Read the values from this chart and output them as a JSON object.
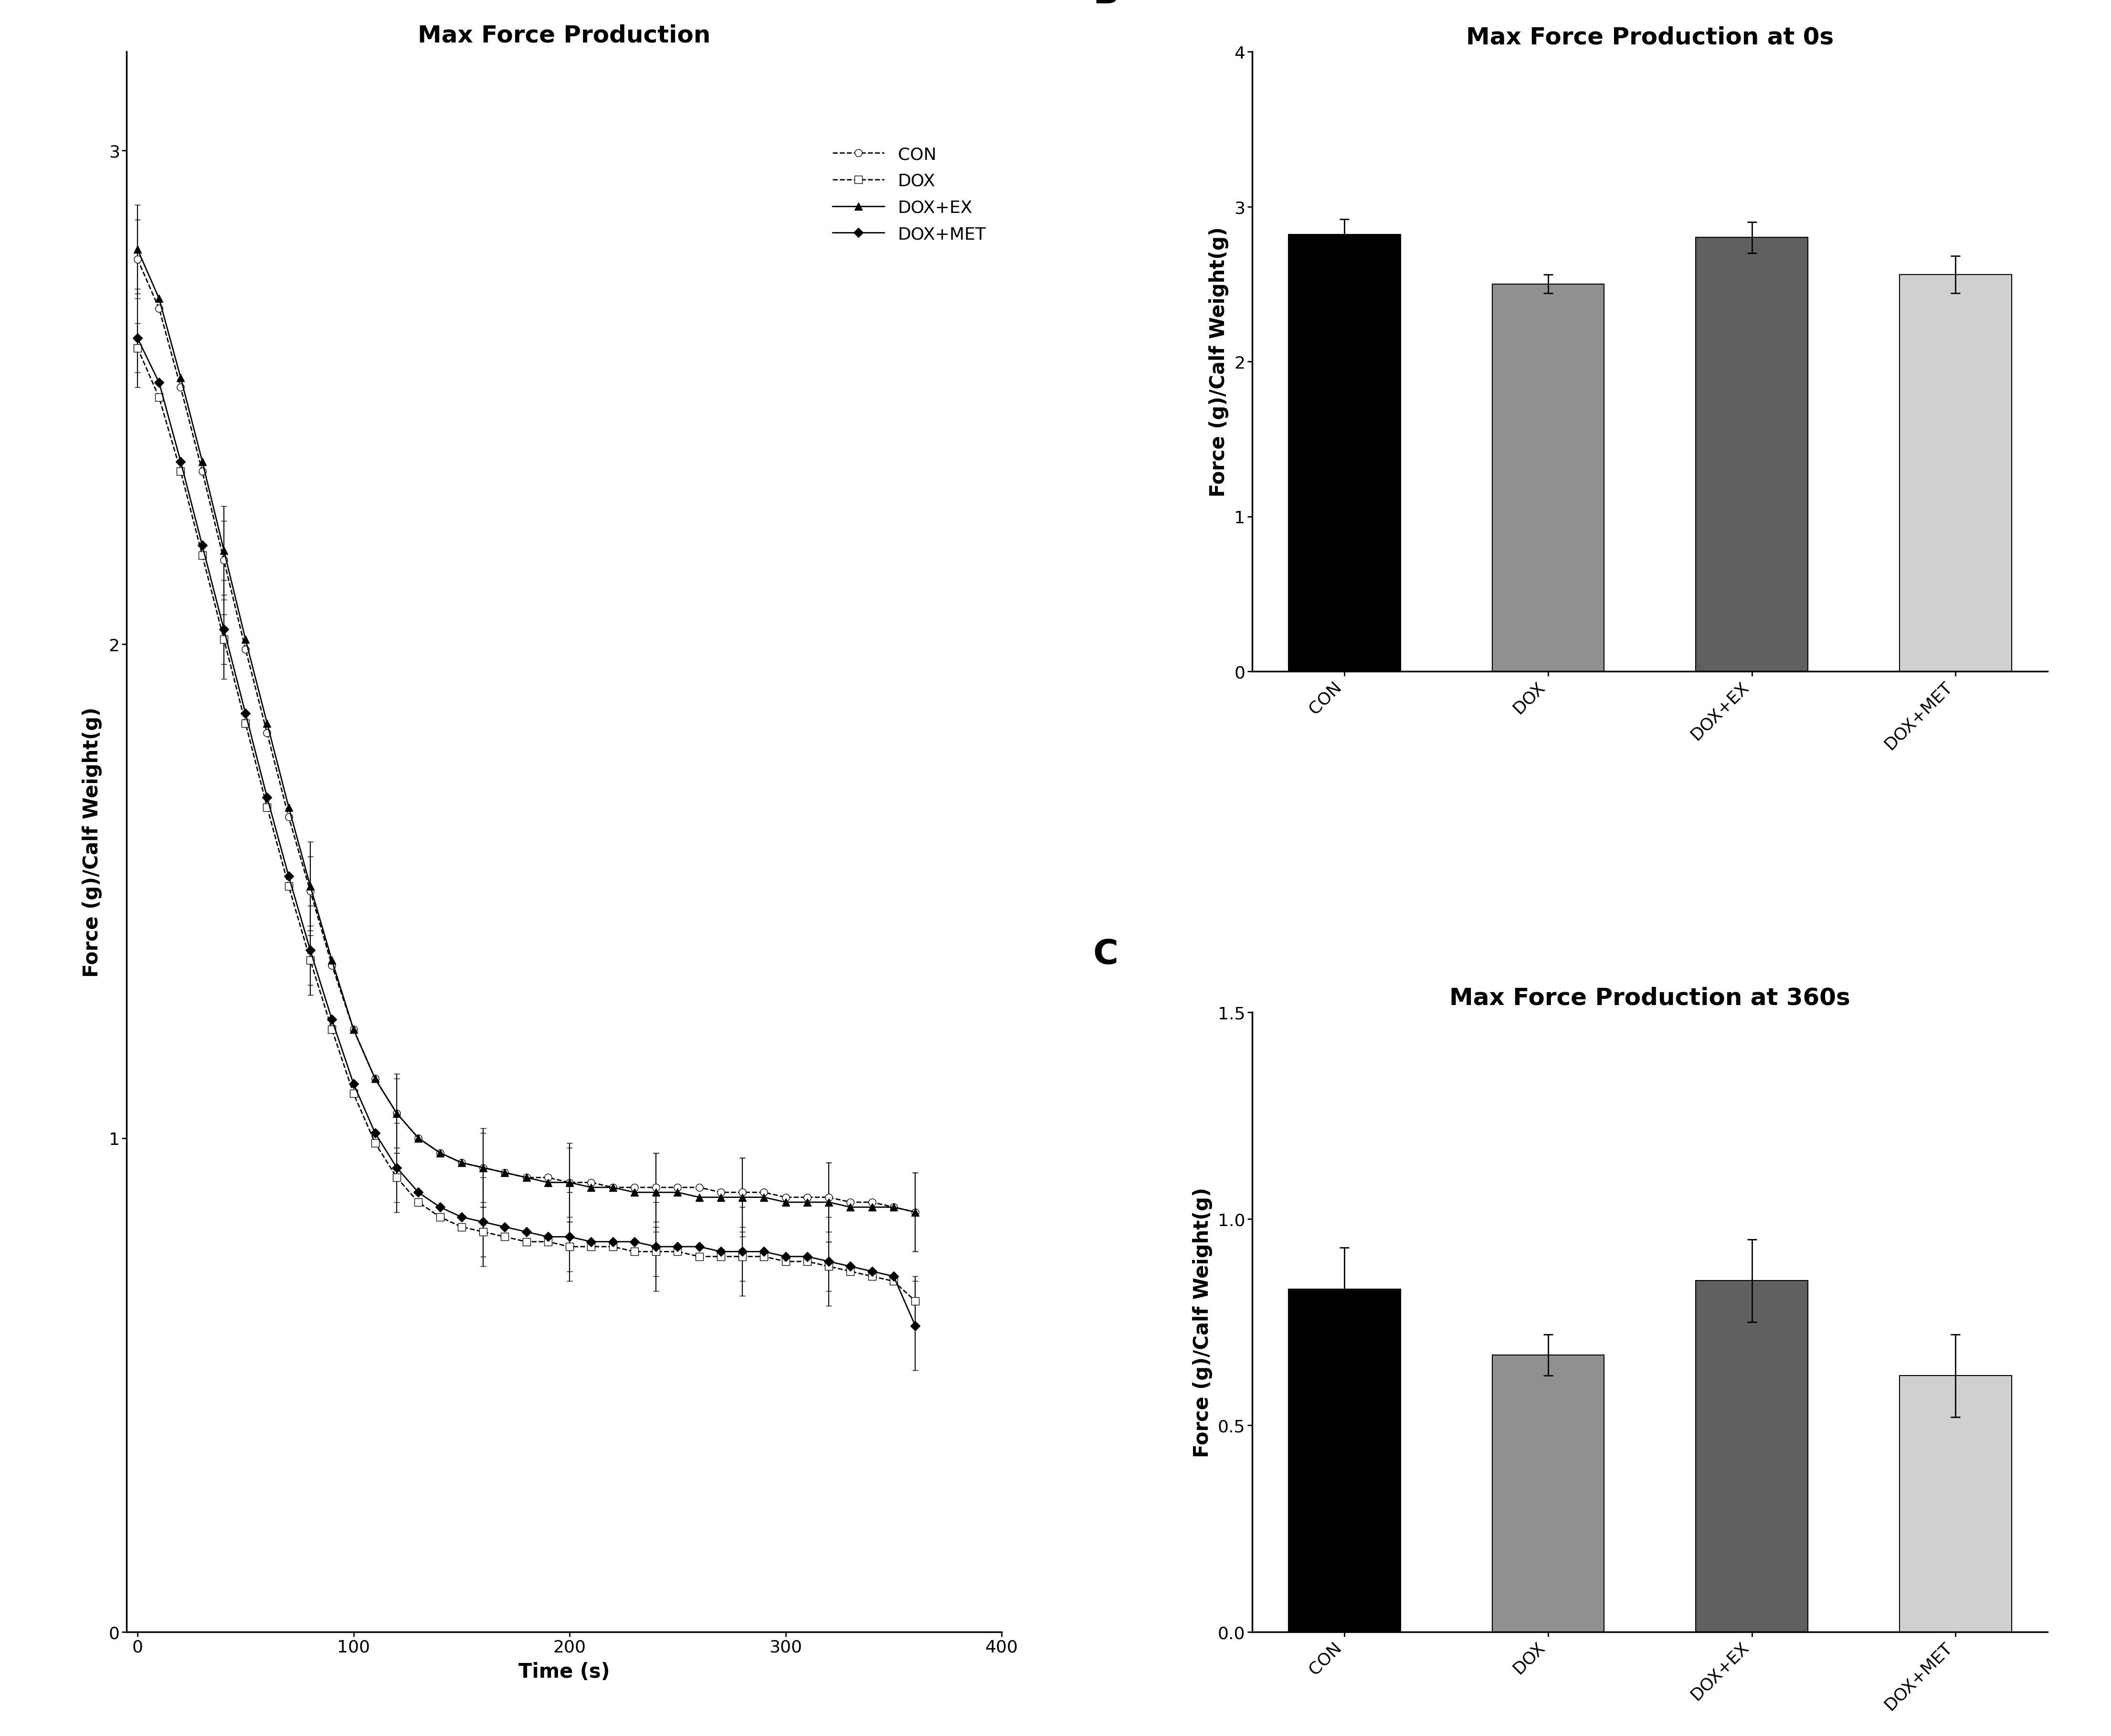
{
  "title_A": "Max Force Production",
  "title_B": "Max Force Production at 0s",
  "title_C": "Max Force Production at 360s",
  "ylabel_A": "Force (g)/Calf Weight(g)",
  "ylabel_BC": "Force (g)/Calf Weight(g)",
  "xlabel_A": "Time (s)",
  "categories": [
    "CON",
    "DOX",
    "DOX+EX",
    "DOX+MET"
  ],
  "bar_colors": [
    "#000000",
    "#909090",
    "#606060",
    "#d0d0d0"
  ],
  "bar_values_B": [
    2.82,
    2.5,
    2.8,
    2.56
  ],
  "bar_errors_B": [
    0.1,
    0.06,
    0.1,
    0.12
  ],
  "bar_values_C": [
    0.83,
    0.67,
    0.85,
    0.62
  ],
  "bar_errors_C": [
    0.1,
    0.05,
    0.1,
    0.1
  ],
  "ylim_B": [
    0,
    4
  ],
  "yticks_B": [
    0,
    1,
    2,
    3,
    4
  ],
  "ylim_C": [
    0,
    1.5
  ],
  "yticks_C": [
    0.0,
    0.5,
    1.0,
    1.5
  ],
  "time_points": [
    0,
    10,
    20,
    30,
    40,
    50,
    60,
    70,
    80,
    90,
    100,
    110,
    120,
    130,
    140,
    150,
    160,
    170,
    180,
    190,
    200,
    210,
    220,
    230,
    240,
    250,
    260,
    270,
    280,
    290,
    300,
    310,
    320,
    330,
    340,
    350,
    360
  ],
  "CON_mean": [
    2.78,
    2.68,
    2.52,
    2.35,
    2.17,
    1.99,
    1.82,
    1.65,
    1.5,
    1.35,
    1.22,
    1.12,
    1.05,
    1.0,
    0.97,
    0.95,
    0.94,
    0.93,
    0.92,
    0.92,
    0.91,
    0.91,
    0.9,
    0.9,
    0.9,
    0.9,
    0.9,
    0.89,
    0.89,
    0.89,
    0.88,
    0.88,
    0.88,
    0.87,
    0.87,
    0.86,
    0.85
  ],
  "CON_err": [
    0.08,
    0.08,
    0.08,
    0.08,
    0.08,
    0.08,
    0.08,
    0.07,
    0.07,
    0.07,
    0.07,
    0.07,
    0.07,
    0.07,
    0.07,
    0.07,
    0.07,
    0.07,
    0.07,
    0.07,
    0.07,
    0.07,
    0.07,
    0.07,
    0.07,
    0.07,
    0.07,
    0.07,
    0.07,
    0.07,
    0.07,
    0.07,
    0.07,
    0.07,
    0.07,
    0.07,
    0.08
  ],
  "DOX_mean": [
    2.6,
    2.5,
    2.35,
    2.18,
    2.01,
    1.84,
    1.67,
    1.51,
    1.36,
    1.22,
    1.09,
    0.99,
    0.92,
    0.87,
    0.84,
    0.82,
    0.81,
    0.8,
    0.79,
    0.79,
    0.78,
    0.78,
    0.78,
    0.77,
    0.77,
    0.77,
    0.76,
    0.76,
    0.76,
    0.76,
    0.75,
    0.75,
    0.74,
    0.73,
    0.72,
    0.71,
    0.67
  ],
  "DOX_err": [
    0.05,
    0.05,
    0.05,
    0.05,
    0.05,
    0.05,
    0.05,
    0.05,
    0.05,
    0.05,
    0.05,
    0.05,
    0.05,
    0.05,
    0.05,
    0.05,
    0.05,
    0.05,
    0.05,
    0.05,
    0.05,
    0.05,
    0.05,
    0.05,
    0.05,
    0.05,
    0.05,
    0.05,
    0.05,
    0.05,
    0.05,
    0.05,
    0.05,
    0.05,
    0.05,
    0.05,
    0.05
  ],
  "DOXEX_mean": [
    2.8,
    2.7,
    2.54,
    2.37,
    2.19,
    2.01,
    1.84,
    1.67,
    1.51,
    1.36,
    1.22,
    1.12,
    1.05,
    1.0,
    0.97,
    0.95,
    0.94,
    0.93,
    0.92,
    0.91,
    0.91,
    0.9,
    0.9,
    0.89,
    0.89,
    0.89,
    0.88,
    0.88,
    0.88,
    0.88,
    0.87,
    0.87,
    0.87,
    0.86,
    0.86,
    0.86,
    0.85
  ],
  "DOXEX_err": [
    0.09,
    0.09,
    0.09,
    0.09,
    0.09,
    0.09,
    0.09,
    0.09,
    0.09,
    0.09,
    0.08,
    0.08,
    0.08,
    0.08,
    0.08,
    0.08,
    0.08,
    0.08,
    0.08,
    0.08,
    0.08,
    0.08,
    0.08,
    0.08,
    0.08,
    0.08,
    0.08,
    0.08,
    0.08,
    0.08,
    0.08,
    0.08,
    0.08,
    0.08,
    0.08,
    0.08,
    0.08
  ],
  "DOXMET_mean": [
    2.62,
    2.53,
    2.37,
    2.2,
    2.03,
    1.86,
    1.69,
    1.53,
    1.38,
    1.24,
    1.11,
    1.01,
    0.94,
    0.89,
    0.86,
    0.84,
    0.83,
    0.82,
    0.81,
    0.8,
    0.8,
    0.79,
    0.79,
    0.79,
    0.78,
    0.78,
    0.78,
    0.77,
    0.77,
    0.77,
    0.76,
    0.76,
    0.75,
    0.74,
    0.73,
    0.72,
    0.62
  ],
  "DOXMET_err": [
    0.1,
    0.1,
    0.1,
    0.1,
    0.1,
    0.1,
    0.09,
    0.09,
    0.09,
    0.09,
    0.09,
    0.09,
    0.09,
    0.09,
    0.09,
    0.09,
    0.09,
    0.09,
    0.09,
    0.09,
    0.09,
    0.09,
    0.09,
    0.09,
    0.09,
    0.09,
    0.09,
    0.09,
    0.09,
    0.09,
    0.09,
    0.09,
    0.09,
    0.09,
    0.09,
    0.09,
    0.09
  ],
  "panel_labels_fontsize": 52,
  "title_fontsize": 36,
  "tick_fontsize": 26,
  "label_fontsize": 30,
  "legend_fontsize": 26,
  "background_color": "#ffffff"
}
